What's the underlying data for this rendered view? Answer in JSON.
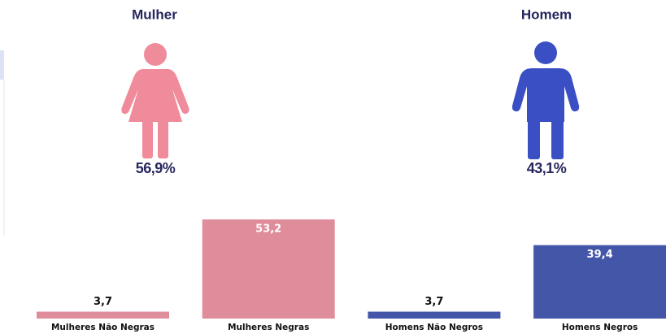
{
  "gender": [
    {
      "label": "Mulher",
      "percent": "56,9%"
    },
    {
      "label": "Homem",
      "percent": "43,1%"
    }
  ],
  "chart_data": {
    "type": "bar",
    "categories": [
      "Mulheres Não Negras",
      "Mulheres Negras",
      "Homens Não Negros",
      "Homens Negros"
    ],
    "values": [
      3.7,
      53.2,
      3.7,
      39.4
    ],
    "value_labels": [
      "3,7",
      "53,2",
      "3,7",
      "39,4"
    ],
    "colors": [
      "#e08d9b",
      "#e08d9b",
      "#4456a8",
      "#4456a8"
    ]
  }
}
